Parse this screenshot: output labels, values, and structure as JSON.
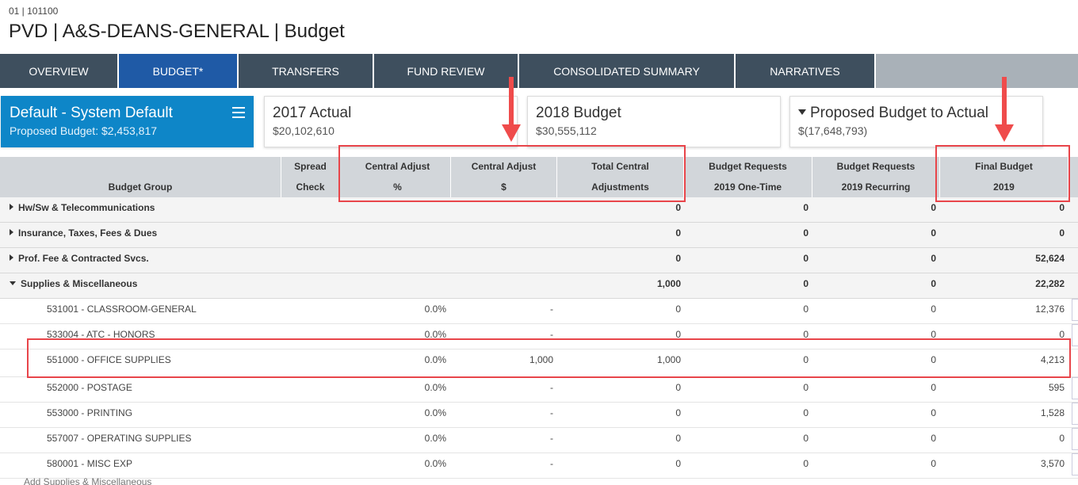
{
  "header": {
    "subtitle": "01 | 101100",
    "title": "PVD | A&S-DEANS-GENERAL | Budget"
  },
  "tabs": [
    {
      "label": "OVERVIEW",
      "active": false
    },
    {
      "label": "BUDGET*",
      "active": true
    },
    {
      "label": "TRANSFERS",
      "active": false
    },
    {
      "label": "FUND REVIEW",
      "active": false
    },
    {
      "label": "CONSOLIDATED SUMMARY",
      "active": false
    },
    {
      "label": "NARRATIVES",
      "active": false
    }
  ],
  "cards": {
    "scenario": {
      "title": "Default - System Default",
      "value": "Proposed Budget: $2,453,817"
    },
    "actual": {
      "title": "2017 Actual",
      "value": "$20,102,610"
    },
    "budget": {
      "title": "2018 Budget",
      "value": "$30,555,112"
    },
    "proposed": {
      "title": "Proposed Budget to Actual",
      "value": "$(17,648,793)"
    }
  },
  "columns": [
    {
      "l1": "",
      "l2": "Budget Group"
    },
    {
      "l1": "Spread",
      "l2": "Check"
    },
    {
      "l1": "Central Adjust",
      "l2": "%"
    },
    {
      "l1": "Central Adjust",
      "l2": "$"
    },
    {
      "l1": "Total Central",
      "l2": "Adjustments"
    },
    {
      "l1": "Budget Requests",
      "l2": "2019 One-Time"
    },
    {
      "l1": "Budget Requests",
      "l2": "2019 Recurring"
    },
    {
      "l1": "Final Budget",
      "l2": "2019"
    }
  ],
  "groups": [
    {
      "name": "Hw/Sw & Telecommunications",
      "expanded": false,
      "total_central": "0",
      "one_time": "0",
      "recurring": "0",
      "final": "0"
    },
    {
      "name": "Insurance, Taxes, Fees & Dues",
      "expanded": false,
      "total_central": "0",
      "one_time": "0",
      "recurring": "0",
      "final": "0"
    },
    {
      "name": "Prof. Fee & Contracted Svcs.",
      "expanded": false,
      "total_central": "0",
      "one_time": "0",
      "recurring": "0",
      "final": "52,624"
    },
    {
      "name": "Supplies & Miscellaneous",
      "expanded": true,
      "total_central": "1,000",
      "one_time": "0",
      "recurring": "0",
      "final": "22,282"
    }
  ],
  "details": [
    {
      "name": "531001 - CLASSROOM-GENERAL",
      "pct": "0.0%",
      "dollar": "-",
      "total_central": "0",
      "one_time": "0",
      "recurring": "0",
      "final": "12,376"
    },
    {
      "name": "533004 - ATC - HONORS",
      "pct": "0.0%",
      "dollar": "-",
      "total_central": "0",
      "one_time": "0",
      "recurring": "0",
      "final": "0"
    },
    {
      "name": "551000 - OFFICE SUPPLIES",
      "pct": "0.0%",
      "dollar": "1,000",
      "total_central": "1,000",
      "one_time": "0",
      "recurring": "0",
      "final": "4,213"
    },
    {
      "name": "552000 - POSTAGE",
      "pct": "0.0%",
      "dollar": "-",
      "total_central": "0",
      "one_time": "0",
      "recurring": "0",
      "final": "595"
    },
    {
      "name": "553000 - PRINTING",
      "pct": "0.0%",
      "dollar": "-",
      "total_central": "0",
      "one_time": "0",
      "recurring": "0",
      "final": "1,528"
    },
    {
      "name": "557007 - OPERATING SUPPLIES",
      "pct": "0.0%",
      "dollar": "-",
      "total_central": "0",
      "one_time": "0",
      "recurring": "0",
      "final": "0"
    },
    {
      "name": "580001 - MISC EXP",
      "pct": "0.0%",
      "dollar": "-",
      "total_central": "0",
      "one_time": "0",
      "recurring": "0",
      "final": "3,570"
    }
  ],
  "footer": {
    "add_link": "Add Supplies & Miscellaneous"
  },
  "colors": {
    "tab": "#3e4f5e",
    "tab_active": "#1f5aa6",
    "scenario_card": "#0e86c8",
    "annotation": "#e8454a"
  }
}
